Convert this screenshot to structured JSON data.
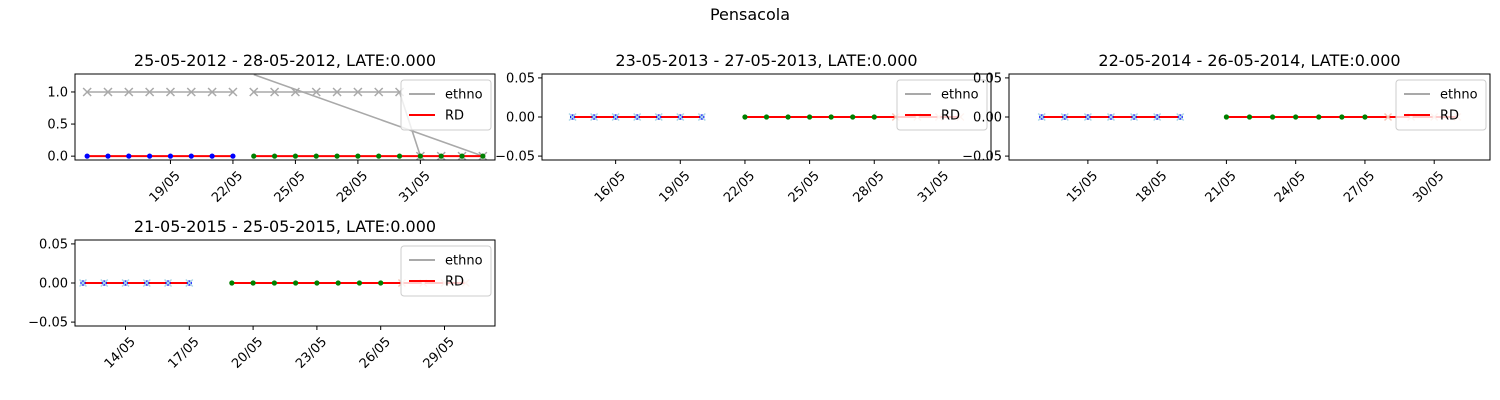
{
  "figure": {
    "suptitle": "Pensacola"
  },
  "colors": {
    "ethno": "#a9a9a9",
    "rd": "#ff0000",
    "obs_before": "#0000ff",
    "obs_after": "#008000",
    "marker_before": "#add8e6",
    "marker_after": "#f4c7b8",
    "axes": "#000000",
    "legend_bg": "#ffffff",
    "legend_border": "#cccccc"
  },
  "legend": {
    "placement": "upper right",
    "entries": [
      "ethno",
      "RD"
    ]
  },
  "chart_data": [
    {
      "type": "line",
      "title": "25-05-2012 - 28-05-2012, LATE:0.000",
      "xlabel": "",
      "ylabel": "",
      "x_ticks": [
        "19/05",
        "22/05",
        "25/05",
        "28/05",
        "31/05"
      ],
      "x_tick_values": [
        "2012-05-19",
        "2012-05-22",
        "2012-05-25",
        "2012-05-28",
        "2012-05-31"
      ],
      "xlim": [
        "2012-05-14T10:00",
        "2012-06-03T14:00"
      ],
      "ylim": [
        -0.06,
        1.28
      ],
      "y_ticks": [
        0.0,
        0.5,
        1.0
      ],
      "y_tick_labels": [
        "0.0",
        "0.5",
        "1.0"
      ],
      "series": [
        {
          "name": "ethno",
          "style": "line+x",
          "color_key": "ethno",
          "segments": [
            {
              "x": [
                "2012-05-15",
                "2012-05-16",
                "2012-05-17",
                "2012-05-18",
                "2012-05-19",
                "2012-05-20",
                "2012-05-21",
                "2012-05-22"
              ],
              "y": [
                1,
                1,
                1,
                1,
                1,
                1,
                1,
                1
              ]
            },
            {
              "x": [
                "2012-05-23",
                "2012-05-24",
                "2012-05-25",
                "2012-05-26",
                "2012-05-27",
                "2012-05-28",
                "2012-05-29",
                "2012-05-30"
              ],
              "y": [
                1,
                1,
                1,
                1,
                1,
                1,
                1,
                1
              ]
            },
            {
              "x": [
                "2012-05-31",
                "2012-06-01",
                "2012-06-02",
                "2012-06-03"
              ],
              "y": [
                0,
                0,
                0,
                0
              ]
            }
          ]
        },
        {
          "name": "",
          "style": "line",
          "color_key": "ethno",
          "segments": [
            {
              "x": [
                "2012-05-23",
                "2012-06-03"
              ],
              "y": [
                1.27,
                0
              ]
            },
            {
              "x": [
                "2012-05-30",
                "2012-05-31"
              ],
              "y": [
                1,
                0
              ]
            }
          ]
        },
        {
          "name": "RD",
          "style": "line",
          "color_key": "rd",
          "segments": [
            {
              "x": [
                "2012-05-15",
                "2012-05-22"
              ],
              "y": [
                0,
                0
              ]
            },
            {
              "x": [
                "2012-05-23",
                "2012-06-03"
              ],
              "y": [
                0,
                0
              ]
            }
          ]
        },
        {
          "name": "",
          "style": "dot",
          "color_key": "obs_before",
          "x": [
            "2012-05-15",
            "2012-05-16",
            "2012-05-17",
            "2012-05-18",
            "2012-05-19",
            "2012-05-20",
            "2012-05-21",
            "2012-05-22"
          ],
          "y": [
            0,
            0,
            0,
            0,
            0,
            0,
            0,
            0
          ]
        },
        {
          "name": "",
          "style": "dot",
          "color_key": "obs_after",
          "x": [
            "2012-05-23",
            "2012-05-24",
            "2012-05-25",
            "2012-05-26",
            "2012-05-27",
            "2012-05-28",
            "2012-05-29",
            "2012-05-30",
            "2012-05-31",
            "2012-06-01",
            "2012-06-02",
            "2012-06-03"
          ],
          "y": [
            0,
            0,
            0,
            0,
            0,
            0,
            0,
            0,
            0,
            0,
            0,
            0
          ]
        }
      ]
    },
    {
      "type": "line",
      "title": "23-05-2013 - 27-05-2013, LATE:0.000",
      "xlabel": "",
      "ylabel": "",
      "x_ticks": [
        "16/05",
        "19/05",
        "22/05",
        "25/05",
        "28/05",
        "31/05"
      ],
      "x_tick_values": [
        "2013-05-16",
        "2013-05-19",
        "2013-05-22",
        "2013-05-25",
        "2013-05-28",
        "2013-05-31"
      ],
      "xlim": [
        "2013-05-12T14:00",
        "2013-06-02T10:00"
      ],
      "ylim": [
        -0.055,
        0.055
      ],
      "y_ticks": [
        -0.05,
        0.0,
        0.05
      ],
      "y_tick_labels": [
        "−0.05",
        "0.00",
        "0.05"
      ],
      "series": [
        {
          "name": "ethno",
          "style": "x",
          "color_key": "ethno",
          "segments": []
        },
        {
          "name": "RD",
          "style": "line",
          "color_key": "rd",
          "segments": [
            {
              "x": [
                "2013-05-14",
                "2013-05-20"
              ],
              "y": [
                0,
                0
              ]
            },
            {
              "x": [
                "2013-05-22",
                "2013-06-01"
              ],
              "y": [
                0,
                0
              ]
            }
          ]
        },
        {
          "name": "",
          "style": "dot",
          "color_key": "obs_before",
          "x": [
            "2013-05-14",
            "2013-05-15",
            "2013-05-16",
            "2013-05-17",
            "2013-05-18",
            "2013-05-19",
            "2013-05-20"
          ],
          "y": [
            0,
            0,
            0,
            0,
            0,
            0,
            0
          ]
        },
        {
          "name": "",
          "style": "dot",
          "color_key": "obs_after",
          "x": [
            "2013-05-22",
            "2013-05-23",
            "2013-05-24",
            "2013-05-25",
            "2013-05-26",
            "2013-05-27",
            "2013-05-28"
          ],
          "y": [
            0,
            0,
            0,
            0,
            0,
            0,
            0
          ]
        },
        {
          "name": "",
          "style": "x",
          "color_key": "marker_before",
          "x": [
            "2013-05-14",
            "2013-05-15",
            "2013-05-16",
            "2013-05-17",
            "2013-05-18",
            "2013-05-19",
            "2013-05-20"
          ],
          "y": [
            0,
            0,
            0,
            0,
            0,
            0,
            0
          ]
        },
        {
          "name": "",
          "style": "x",
          "color_key": "marker_after",
          "x": [
            "2013-05-29",
            "2013-05-30",
            "2013-05-31",
            "2013-06-01"
          ],
          "y": [
            0,
            0,
            0,
            0
          ]
        }
      ]
    },
    {
      "type": "line",
      "title": "22-05-2014 - 26-05-2014, LATE:0.000",
      "xlabel": "",
      "ylabel": "",
      "x_ticks": [
        "15/05",
        "18/05",
        "21/05",
        "24/05",
        "27/05",
        "30/05"
      ],
      "x_tick_values": [
        "2014-05-15",
        "2014-05-18",
        "2014-05-21",
        "2014-05-24",
        "2014-05-27",
        "2014-05-30"
      ],
      "xlim": [
        "2014-05-11T14:00",
        "2014-06-01T10:00"
      ],
      "ylim": [
        -0.055,
        0.055
      ],
      "y_ticks": [
        -0.05,
        0.0,
        0.05
      ],
      "y_tick_labels": [
        "−0.05",
        "0.00",
        "0.05"
      ],
      "series": [
        {
          "name": "ethno",
          "style": "x",
          "color_key": "ethno",
          "segments": []
        },
        {
          "name": "RD",
          "style": "line",
          "color_key": "rd",
          "segments": [
            {
              "x": [
                "2014-05-13",
                "2014-05-19"
              ],
              "y": [
                0,
                0
              ]
            },
            {
              "x": [
                "2014-05-21",
                "2014-05-31"
              ],
              "y": [
                0,
                0
              ]
            }
          ]
        },
        {
          "name": "",
          "style": "dot",
          "color_key": "obs_before",
          "x": [
            "2014-05-13",
            "2014-05-14",
            "2014-05-15",
            "2014-05-16",
            "2014-05-17",
            "2014-05-18",
            "2014-05-19"
          ],
          "y": [
            0,
            0,
            0,
            0,
            0,
            0,
            0
          ]
        },
        {
          "name": "",
          "style": "dot",
          "color_key": "obs_after",
          "x": [
            "2014-05-21",
            "2014-05-22",
            "2014-05-23",
            "2014-05-24",
            "2014-05-25",
            "2014-05-26",
            "2014-05-27"
          ],
          "y": [
            0,
            0,
            0,
            0,
            0,
            0,
            0
          ]
        },
        {
          "name": "",
          "style": "x",
          "color_key": "marker_before",
          "x": [
            "2014-05-13",
            "2014-05-14",
            "2014-05-15",
            "2014-05-16",
            "2014-05-17",
            "2014-05-18",
            "2014-05-19"
          ],
          "y": [
            0,
            0,
            0,
            0,
            0,
            0,
            0
          ]
        },
        {
          "name": "",
          "style": "x",
          "color_key": "marker_after",
          "x": [
            "2014-05-28",
            "2014-05-29",
            "2014-05-30",
            "2014-05-31"
          ],
          "y": [
            0,
            0,
            0,
            0
          ]
        }
      ]
    },
    {
      "type": "line",
      "title": "21-05-2015 - 25-05-2015, LATE:0.000",
      "xlabel": "",
      "ylabel": "",
      "x_ticks": [
        "14/05",
        "17/05",
        "20/05",
        "23/05",
        "26/05",
        "29/05"
      ],
      "x_tick_values": [
        "2015-05-14",
        "2015-05-17",
        "2015-05-20",
        "2015-05-23",
        "2015-05-26",
        "2015-05-29"
      ],
      "xlim": [
        "2015-05-11T15:00",
        "2015-05-31T09:00"
      ],
      "ylim": [
        -0.055,
        0.055
      ],
      "y_ticks": [
        -0.05,
        0.0,
        0.05
      ],
      "y_tick_labels": [
        "−0.05",
        "0.00",
        "0.05"
      ],
      "series": [
        {
          "name": "ethno",
          "style": "x",
          "color_key": "ethno",
          "segments": []
        },
        {
          "name": "RD",
          "style": "line",
          "color_key": "rd",
          "segments": [
            {
              "x": [
                "2015-05-12",
                "2015-05-17"
              ],
              "y": [
                0,
                0
              ]
            },
            {
              "x": [
                "2015-05-19",
                "2015-05-30"
              ],
              "y": [
                0,
                0
              ]
            }
          ]
        },
        {
          "name": "",
          "style": "dot",
          "color_key": "obs_before",
          "x": [
            "2015-05-12",
            "2015-05-13",
            "2015-05-14",
            "2015-05-15",
            "2015-05-16",
            "2015-05-17"
          ],
          "y": [
            0,
            0,
            0,
            0,
            0,
            0
          ]
        },
        {
          "name": "",
          "style": "dot",
          "color_key": "obs_after",
          "x": [
            "2015-05-19",
            "2015-05-20",
            "2015-05-21",
            "2015-05-22",
            "2015-05-23",
            "2015-05-24",
            "2015-05-25",
            "2015-05-26"
          ],
          "y": [
            0,
            0,
            0,
            0,
            0,
            0,
            0,
            0
          ]
        },
        {
          "name": "",
          "style": "x",
          "color_key": "marker_before",
          "x": [
            "2015-05-12",
            "2015-05-13",
            "2015-05-14",
            "2015-05-15",
            "2015-05-16",
            "2015-05-17"
          ],
          "y": [
            0,
            0,
            0,
            0,
            0,
            0
          ]
        },
        {
          "name": "",
          "style": "x",
          "color_key": "marker_after",
          "x": [
            "2015-05-27",
            "2015-05-28",
            "2015-05-29",
            "2015-05-30"
          ],
          "y": [
            0,
            0,
            0,
            0
          ]
        }
      ]
    }
  ]
}
